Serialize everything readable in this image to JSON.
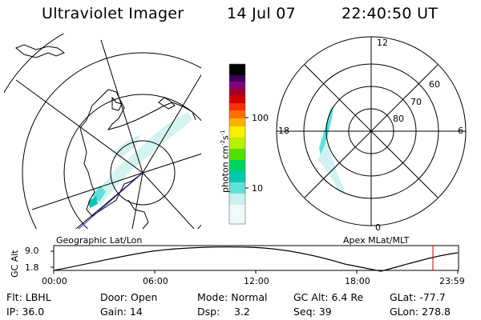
{
  "header": {
    "title": "Ultraviolet Imager",
    "date": "14 Jul 07",
    "time": "22:40:50 UT"
  },
  "left_panel": {
    "caption": "Geographic Lat/Lon"
  },
  "right_panel": {
    "caption": "Apex MLat/MLT",
    "mlt_labels": [
      "12",
      "18",
      "6",
      "0"
    ],
    "mlat_labels": [
      "60",
      "70",
      "80"
    ]
  },
  "colorbar": {
    "unit_label": "photon cm",
    "unit_sup1": "-2",
    "unit_mid": "s",
    "unit_sup2": "-1",
    "ticks": [
      "100",
      "10"
    ],
    "scale": "log",
    "colors": [
      "#000000",
      "#3b0052",
      "#800080",
      "#a00030",
      "#d00000",
      "#ff3000",
      "#ff7000",
      "#ffb000",
      "#f8f000",
      "#b8f000",
      "#50e000",
      "#00d060",
      "#00c8b0",
      "#60e0d8",
      "#c8f0ee",
      "#ffffff"
    ]
  },
  "altitude_plot": {
    "ylabel": "GC Alt",
    "yticks": [
      "9.0",
      "1.8"
    ],
    "xticks": [
      "00:00",
      "06:00",
      "12:00",
      "18:00",
      "23:59"
    ],
    "current_time_marker": "22:40:50",
    "marker_color": "#d00000"
  },
  "info": {
    "row1": [
      "Flt: LBHL",
      "Door: Open",
      "Mode: Normal",
      "GC Alt: 6.4 Re",
      "GLat: -77.7"
    ],
    "row2": [
      "IP: 36.0",
      "Gain: 14",
      "Dsp:",
      "3.2",
      "Seq: 39",
      "GLon: 278.8"
    ]
  }
}
